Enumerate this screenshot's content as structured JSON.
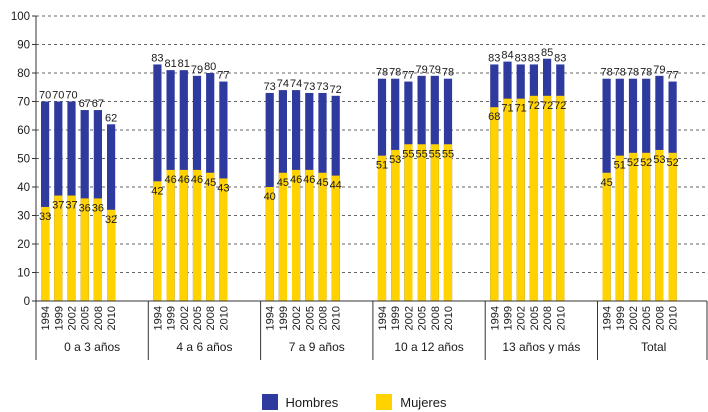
{
  "chart_data": {
    "type": "bar",
    "title": "",
    "xlabel": "",
    "ylabel": "",
    "ylim": [
      0,
      100
    ],
    "yticks": [
      0,
      10,
      20,
      30,
      40,
      50,
      60,
      70,
      80,
      90,
      100
    ],
    "grid": "dashed-horizontal",
    "legend_position": "bottom-center",
    "groups": [
      {
        "label": "0 a 3 años",
        "years": [
          "1994",
          "1999",
          "2002",
          "2005",
          "2008",
          "2010"
        ],
        "hombres": [
          70,
          70,
          70,
          67,
          67,
          62
        ],
        "mujeres": [
          33,
          37,
          37,
          36,
          36,
          32
        ]
      },
      {
        "label": "4 a 6 años",
        "years": [
          "1994",
          "1999",
          "2002",
          "2005",
          "2008",
          "2010"
        ],
        "hombres": [
          83,
          81,
          81,
          79,
          80,
          77
        ],
        "mujeres": [
          42,
          46,
          46,
          46,
          45,
          43
        ]
      },
      {
        "label": "7 a 9 años",
        "years": [
          "1994",
          "1999",
          "2002",
          "2005",
          "2008",
          "2010"
        ],
        "hombres": [
          73,
          74,
          74,
          73,
          73,
          72
        ],
        "mujeres": [
          40,
          45,
          46,
          46,
          45,
          44
        ]
      },
      {
        "label": "10 a 12 años",
        "years": [
          "1994",
          "1999",
          "2002",
          "2005",
          "2008",
          "2010"
        ],
        "hombres": [
          78,
          78,
          77,
          79,
          79,
          78
        ],
        "mujeres": [
          51,
          53,
          55,
          55,
          55,
          55
        ]
      },
      {
        "label": "13 años y más",
        "years": [
          "1994",
          "1999",
          "2002",
          "2005",
          "2008",
          "2010"
        ],
        "hombres": [
          83,
          84,
          83,
          83,
          85,
          83
        ],
        "mujeres": [
          68,
          71,
          71,
          72,
          72,
          72
        ]
      },
      {
        "label": "Total",
        "years": [
          "1994",
          "1999",
          "2002",
          "2005",
          "2008",
          "2010"
        ],
        "hombres": [
          78,
          78,
          78,
          78,
          79,
          77
        ],
        "mujeres": [
          45,
          51,
          52,
          52,
          53,
          52
        ]
      }
    ],
    "series": [
      {
        "name": "Hombres",
        "color": "#2E3A9E"
      },
      {
        "name": "Mujeres",
        "color": "#FFD200"
      }
    ]
  }
}
